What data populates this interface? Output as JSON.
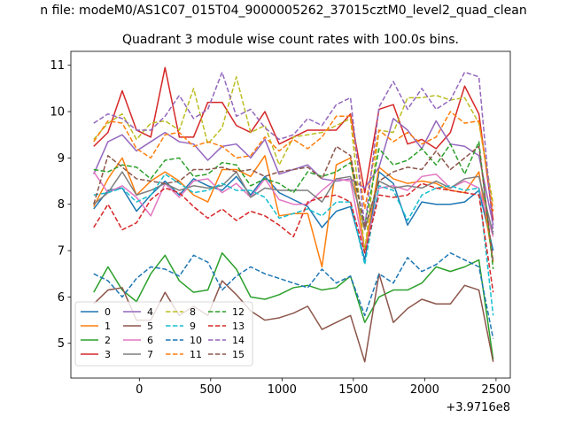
{
  "suptitle": "n file: modeM0/AS1C07_015T04_9000005262_37015cztM0_level2_quad_clean",
  "chart_data": {
    "type": "line",
    "title": "Quadrant 3 module wise count rates with 100.0s bins.",
    "xlabel": "",
    "ylabel": "",
    "x_offset_label": "+3.9716e8",
    "xlim": [
      -480,
      2600
    ],
    "ylim": [
      4.25,
      11.3
    ],
    "x_ticks": [
      0,
      500,
      1000,
      1500,
      2000,
      2500
    ],
    "x_tick_labels": [
      "0",
      "500",
      "1000",
      "1500",
      "2000",
      "2500"
    ],
    "y_ticks": [
      5,
      6,
      7,
      8,
      9,
      10,
      11
    ],
    "y_tick_labels": [
      "5",
      "6",
      "7",
      "8",
      "9",
      "10",
      "11"
    ],
    "grid": false,
    "legend_position": "lower-left",
    "legend_columns": 4,
    "x": [
      -320,
      -220,
      -120,
      -20,
      80,
      180,
      280,
      380,
      480,
      580,
      680,
      780,
      880,
      980,
      1080,
      1180,
      1280,
      1380,
      1480,
      1580,
      1680,
      1780,
      1880,
      1980,
      2080,
      2180,
      2280,
      2380,
      2480
    ],
    "series": [
      {
        "name": "0",
        "color": "#1f77b4",
        "dash": "solid",
        "values": [
          7.9,
          8.3,
          8.35,
          7.85,
          8.2,
          8.5,
          8.2,
          8.55,
          8.4,
          8.3,
          8.6,
          8.2,
          8.6,
          8.25,
          8.1,
          7.95,
          7.5,
          7.85,
          7.95,
          6.8,
          8.7,
          8.45,
          7.55,
          8.05,
          8.0,
          8.0,
          8.05,
          8.3,
          7.0
        ]
      },
      {
        "name": "1",
        "color": "#ff7f0e",
        "dash": "solid",
        "values": [
          7.95,
          8.55,
          9.0,
          8.2,
          8.5,
          8.7,
          8.5,
          8.2,
          8.05,
          8.75,
          8.75,
          8.6,
          9.05,
          7.75,
          7.8,
          7.8,
          6.65,
          8.85,
          9.0,
          7.0,
          8.8,
          8.55,
          8.45,
          8.5,
          8.45,
          8.3,
          8.25,
          8.7,
          6.75
        ]
      },
      {
        "name": "2",
        "color": "#2ca02c",
        "dash": "solid",
        "values": [
          6.1,
          6.65,
          6.15,
          5.9,
          6.5,
          6.9,
          6.35,
          6.1,
          6.15,
          6.95,
          6.6,
          6.0,
          5.95,
          6.05,
          6.2,
          6.25,
          6.15,
          6.2,
          6.45,
          5.45,
          6.0,
          6.15,
          6.15,
          6.3,
          6.65,
          6.55,
          6.65,
          6.8,
          4.65
        ]
      },
      {
        "name": "3",
        "color": "#d62728",
        "dash": "solid",
        "values": [
          9.25,
          9.55,
          10.45,
          9.6,
          9.45,
          10.95,
          9.45,
          9.45,
          10.2,
          10.2,
          9.7,
          9.55,
          10.0,
          9.3,
          9.45,
          9.6,
          9.6,
          9.6,
          9.95,
          8.25,
          10.05,
          10.15,
          9.3,
          9.4,
          9.2,
          9.55,
          10.55,
          9.95,
          7.65
        ]
      },
      {
        "name": "4",
        "color": "#9467bd",
        "dash": "solid",
        "values": [
          8.65,
          9.35,
          9.5,
          9.15,
          9.35,
          9.55,
          9.35,
          9.3,
          8.95,
          9.25,
          9.3,
          9.0,
          9.4,
          8.65,
          8.75,
          8.85,
          8.55,
          8.5,
          8.55,
          8.35,
          8.8,
          9.85,
          9.6,
          9.2,
          9.8,
          9.3,
          9.25,
          9.05,
          7.55
        ]
      },
      {
        "name": "5",
        "color": "#8c564b",
        "dash": "solid",
        "values": [
          5.85,
          6.15,
          6.2,
          5.5,
          5.5,
          6.1,
          5.6,
          5.8,
          5.6,
          6.35,
          6.05,
          5.7,
          5.5,
          5.55,
          5.65,
          5.8,
          5.3,
          5.45,
          5.6,
          4.6,
          6.5,
          5.45,
          5.75,
          5.95,
          5.85,
          5.85,
          6.25,
          6.15,
          4.6
        ]
      },
      {
        "name": "6",
        "color": "#e377c2",
        "dash": "solid",
        "values": [
          8.7,
          8.25,
          8.4,
          8.15,
          7.75,
          8.45,
          8.15,
          8.5,
          8.55,
          8.25,
          8.45,
          8.15,
          8.55,
          8.1,
          8.0,
          8.0,
          8.3,
          8.55,
          8.5,
          6.95,
          8.35,
          8.4,
          8.3,
          8.6,
          8.65,
          8.35,
          8.5,
          8.35,
          7.3
        ]
      },
      {
        "name": "7",
        "color": "#7f7f7f",
        "dash": "solid",
        "values": [
          8.0,
          8.25,
          8.7,
          8.2,
          8.3,
          8.45,
          8.3,
          8.4,
          8.35,
          8.4,
          8.7,
          8.15,
          8.35,
          8.3,
          8.3,
          8.3,
          8.05,
          8.55,
          8.6,
          7.45,
          8.5,
          8.35,
          8.4,
          8.35,
          8.5,
          8.35,
          8.55,
          8.6,
          7.35
        ]
      },
      {
        "name": "8",
        "color": "#bcbd22",
        "dash": "dashed",
        "values": [
          9.4,
          9.75,
          9.95,
          9.4,
          9.75,
          9.8,
          9.6,
          10.5,
          9.3,
          9.65,
          10.75,
          9.55,
          9.7,
          8.85,
          9.45,
          9.5,
          9.55,
          9.7,
          9.85,
          7.0,
          9.6,
          9.55,
          10.3,
          10.3,
          10.35,
          10.25,
          10.3,
          9.75,
          8.0
        ]
      },
      {
        "name": "9",
        "color": "#17becf",
        "dash": "dashed",
        "values": [
          8.2,
          8.25,
          8.35,
          8.05,
          8.2,
          8.65,
          8.45,
          8.25,
          8.3,
          8.45,
          8.3,
          8.3,
          8.15,
          7.7,
          7.8,
          7.9,
          7.75,
          8.05,
          8.05,
          6.7,
          8.4,
          8.3,
          7.65,
          8.2,
          8.35,
          8.4,
          8.3,
          8.35,
          5.6
        ]
      },
      {
        "name": "10",
        "color": "#1f77b4",
        "dash": "dashed",
        "values": [
          6.5,
          6.35,
          6.0,
          6.4,
          6.65,
          6.6,
          6.45,
          6.9,
          6.75,
          6.15,
          6.45,
          6.65,
          6.5,
          6.4,
          6.3,
          6.2,
          6.6,
          6.3,
          6.45,
          5.6,
          6.5,
          6.3,
          6.85,
          6.55,
          6.7,
          6.95,
          6.8,
          6.65,
          5.1
        ]
      },
      {
        "name": "11",
        "color": "#ff7f0e",
        "dash": "dashed",
        "values": [
          9.35,
          9.8,
          9.75,
          9.2,
          9.0,
          9.5,
          9.55,
          9.25,
          9.35,
          9.25,
          9.0,
          9.05,
          9.45,
          9.15,
          9.4,
          9.2,
          9.45,
          9.9,
          9.9,
          7.9,
          9.6,
          9.35,
          9.55,
          9.3,
          9.45,
          10.0,
          9.75,
          9.8,
          7.85
        ]
      },
      {
        "name": "12",
        "color": "#2ca02c",
        "dash": "dashed",
        "values": [
          8.75,
          8.7,
          8.85,
          8.8,
          8.55,
          8.95,
          9.0,
          8.6,
          8.65,
          8.9,
          8.85,
          8.4,
          8.55,
          8.45,
          8.25,
          8.7,
          8.6,
          8.7,
          8.9,
          7.55,
          9.2,
          8.85,
          8.95,
          9.2,
          8.85,
          9.3,
          8.65,
          9.35,
          6.6
        ]
      },
      {
        "name": "13",
        "color": "#d62728",
        "dash": "dashed",
        "values": [
          7.5,
          8.0,
          7.45,
          7.6,
          8.1,
          8.35,
          8.25,
          7.95,
          7.7,
          7.9,
          7.65,
          7.85,
          7.75,
          7.55,
          7.3,
          8.05,
          8.15,
          8.2,
          8.05,
          6.95,
          8.2,
          8.15,
          8.2,
          8.45,
          8.35,
          8.3,
          8.25,
          8.2,
          6.1
        ]
      },
      {
        "name": "14",
        "color": "#9467bd",
        "dash": "dashed",
        "values": [
          9.75,
          9.95,
          9.85,
          9.6,
          9.6,
          9.9,
          10.35,
          9.85,
          10.05,
          10.85,
          9.9,
          10.05,
          9.65,
          9.4,
          9.5,
          9.85,
          9.7,
          10.15,
          10.3,
          7.5,
          10.1,
          10.65,
          10.05,
          10.5,
          10.05,
          10.25,
          10.85,
          10.75,
          7.4
        ]
      },
      {
        "name": "15",
        "color": "#8c564b",
        "dash": "dashed",
        "values": [
          8.0,
          9.05,
          8.8,
          8.55,
          8.5,
          8.45,
          8.5,
          8.75,
          8.75,
          8.8,
          8.7,
          8.75,
          8.6,
          8.7,
          8.75,
          8.8,
          8.55,
          9.25,
          9.05,
          7.5,
          8.5,
          8.7,
          8.8,
          8.75,
          9.15,
          8.75,
          9.0,
          9.25,
          6.75
        ]
      }
    ]
  }
}
